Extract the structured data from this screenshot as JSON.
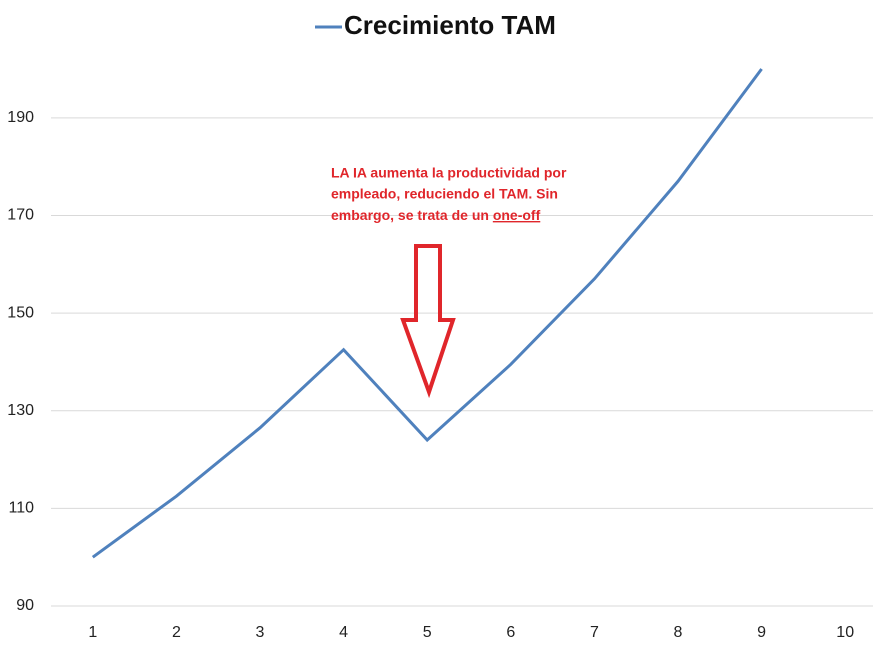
{
  "chart_data": {
    "type": "line",
    "categories": [
      "1",
      "2",
      "3",
      "4",
      "5",
      "6",
      "7",
      "8",
      "9",
      "10"
    ],
    "series": [
      {
        "name": "Crecimiento TAM",
        "color": "#4f81bd",
        "values": [
          100,
          112.5,
          126.5,
          142.5,
          124,
          139.5,
          157,
          177,
          200,
          null
        ]
      }
    ],
    "ylim": [
      90,
      200
    ],
    "yticks": [
      90,
      110,
      130,
      150,
      170,
      190
    ],
    "grid": true,
    "annotation": {
      "lines": [
        "LA IA aumenta la productividad por",
        "empleado, reduciendo el TAM. Sin",
        "embargo, se trata de un"
      ],
      "underlined": "one-off"
    }
  }
}
